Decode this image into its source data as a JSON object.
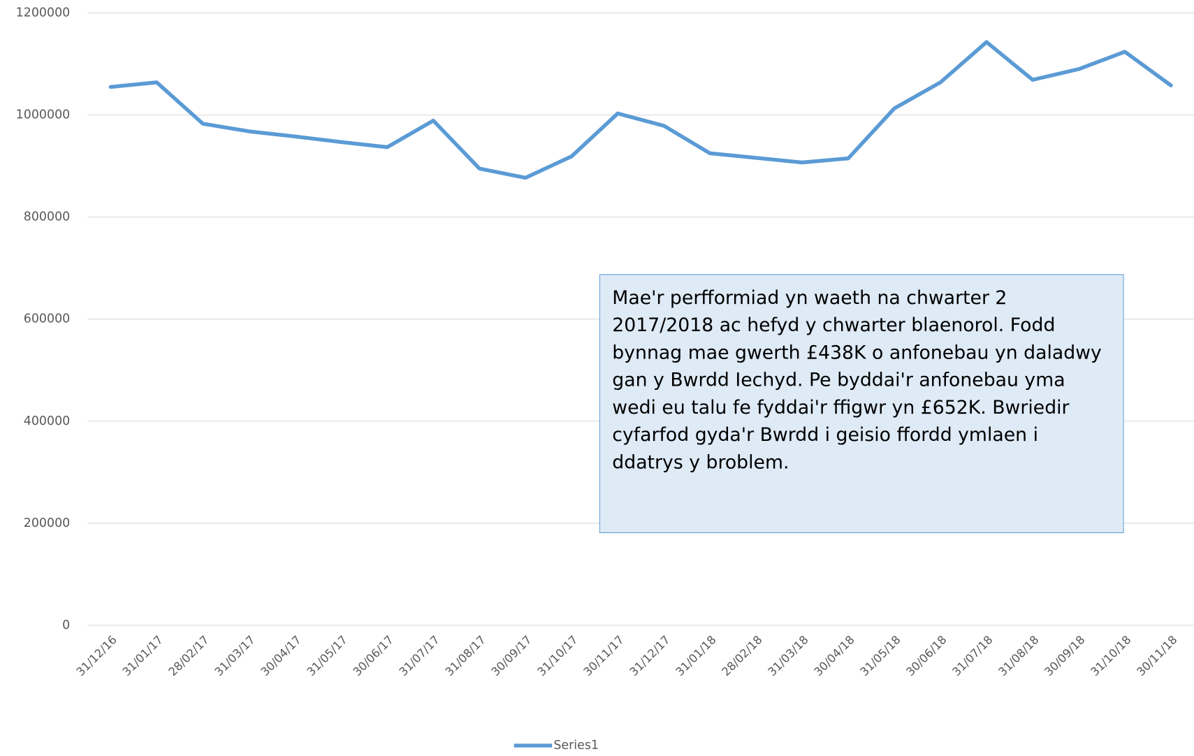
{
  "chart_data": {
    "type": "line",
    "categories": [
      "31/12/16",
      "31/01/17",
      "28/02/17",
      "31/03/17",
      "30/04/17",
      "31/05/17",
      "30/06/17",
      "31/07/17",
      "31/08/17",
      "30/09/17",
      "31/10/17",
      "30/11/17",
      "31/12/17",
      "31/01/18",
      "28/02/18",
      "31/03/18",
      "30/04/18",
      "31/05/18",
      "30/06/18",
      "31/07/18",
      "31/08/18",
      "30/09/18",
      "31/10/18",
      "30/11/18"
    ],
    "series": [
      {
        "name": "Series1",
        "color": "#5b9bd5",
        "values": [
          1055000,
          1064000,
          983000,
          968000,
          958000,
          947000,
          937000,
          989000,
          895000,
          877000,
          919000,
          1003000,
          979000,
          925000,
          916000,
          907000,
          915000,
          1013000,
          1064000,
          1143000,
          1069000,
          1090000,
          1124000,
          1058000
        ]
      }
    ],
    "ylim": [
      0,
      1200000
    ],
    "yticks": [
      0,
      200000,
      400000,
      600000,
      800000,
      1000000,
      1200000
    ],
    "grid": true,
    "legend": "bottom",
    "annotation": "Mae'r perfformiad yn waeth na chwarter 2 2017/2018 ac hefyd y chwarter blaenorol. Fodd bynnag mae gwerth £438K o anfonebau yn daladwy gan y Bwrdd Iechyd. Pe byddai'r anfonebau yma wedi eu talu fe fyddai'r ffigwr yn £652K. Bwriedir cyfarfod gyda'r Bwrdd i geisio ffordd ymlaen i ddatrys y broblem."
  }
}
